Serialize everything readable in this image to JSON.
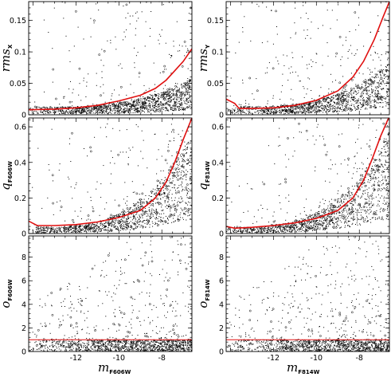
{
  "figure": {
    "x_ticks": [
      "-12",
      "-10",
      "-8"
    ],
    "panels_x_label": {
      "left": {
        "main": "m",
        "sub": "F606W"
      },
      "right": {
        "main": "m",
        "sub": "F814W"
      }
    }
  },
  "chart_data": [
    {
      "type": "scatter",
      "panel": "rms-x",
      "ylabel": {
        "main": "rms",
        "sub": "X"
      },
      "xlim": [
        -14.2,
        -6.6
      ],
      "ylim": [
        0,
        0.18
      ],
      "xticks": [
        -12,
        -10,
        -8
      ],
      "yticks": [
        0,
        0.05,
        0.1,
        0.15
      ],
      "ytick_labels": [
        "0",
        "0.05",
        "0.1",
        "0.15"
      ],
      "threshold_curve": {
        "x": [
          -14.2,
          -13,
          -12,
          -11,
          -10,
          -9,
          -8.3,
          -7.8,
          -7.4,
          -7.0,
          -6.6
        ],
        "y": [
          0.008,
          0.009,
          0.011,
          0.015,
          0.022,
          0.031,
          0.042,
          0.055,
          0.07,
          0.085,
          0.105
        ]
      },
      "scatter_envelope": {
        "base": 0.01,
        "growth": 0.035
      }
    },
    {
      "type": "scatter",
      "panel": "rms-y",
      "ylabel": {
        "main": "rms",
        "sub": "Y"
      },
      "xlim": [
        -14.2,
        -6.6
      ],
      "ylim": [
        0,
        0.18
      ],
      "xticks": [
        -12,
        -10,
        -8
      ],
      "yticks": [
        0,
        0.05,
        0.1,
        0.15
      ],
      "ytick_labels": [
        "0",
        "0.05",
        "0.1",
        "0.15"
      ],
      "threshold_curve": {
        "x": [
          -14.2,
          -13.8,
          -13.6,
          -13,
          -12,
          -11,
          -10,
          -9,
          -8.3,
          -7.8,
          -7.3,
          -6.9,
          -6.6
        ],
        "y": [
          0.025,
          0.018,
          0.01,
          0.01,
          0.011,
          0.015,
          0.023,
          0.038,
          0.06,
          0.085,
          0.12,
          0.155,
          0.18
        ]
      },
      "scatter_envelope": {
        "base": 0.01,
        "growth": 0.055
      }
    },
    {
      "type": "scatter",
      "panel": "q-f606w",
      "ylabel": {
        "main": "q",
        "sub": "F606W"
      },
      "xlim": [
        -14.2,
        -6.6
      ],
      "ylim": [
        0,
        0.65
      ],
      "xticks": [
        -12,
        -10,
        -8
      ],
      "yticks": [
        0,
        0.2,
        0.4,
        0.6
      ],
      "ytick_labels": [
        "0",
        "0.2",
        "0.4",
        "0.6"
      ],
      "threshold_curve": {
        "x": [
          -14.2,
          -13.8,
          -13,
          -12,
          -11,
          -10,
          -9,
          -8.3,
          -7.8,
          -7.4,
          -7.0,
          -6.6
        ],
        "y": [
          0.07,
          0.045,
          0.045,
          0.05,
          0.065,
          0.09,
          0.13,
          0.2,
          0.29,
          0.4,
          0.53,
          0.65
        ]
      },
      "scatter_envelope": {
        "base": 0.03,
        "growth": 0.4
      }
    },
    {
      "type": "scatter",
      "panel": "q-f814w",
      "ylabel": {
        "main": "q",
        "sub": "F814W"
      },
      "xlim": [
        -14.2,
        -6.6
      ],
      "ylim": [
        0,
        0.65
      ],
      "xticks": [
        -12,
        -10,
        -8
      ],
      "yticks": [
        0,
        0.2,
        0.4,
        0.6
      ],
      "ytick_labels": [
        "0",
        "0.2",
        "0.4",
        "0.6"
      ],
      "threshold_curve": {
        "x": [
          -14.2,
          -13.8,
          -13,
          -12,
          -11,
          -10,
          -9,
          -8.3,
          -7.8,
          -7.4,
          -7.0,
          -6.6
        ],
        "y": [
          0.04,
          0.03,
          0.035,
          0.045,
          0.06,
          0.085,
          0.13,
          0.2,
          0.3,
          0.42,
          0.55,
          0.66
        ]
      },
      "scatter_envelope": {
        "base": 0.03,
        "growth": 0.42
      }
    },
    {
      "type": "scatter",
      "panel": "o-f606w",
      "ylabel": {
        "main": "o",
        "sub": "F606W"
      },
      "xlim": [
        -14.2,
        -6.6
      ],
      "ylim": [
        0,
        9.8
      ],
      "xticks": [
        -12,
        -10,
        -8
      ],
      "yticks": [
        0,
        2,
        4,
        6,
        8
      ],
      "ytick_labels": [
        "0",
        "2",
        "4",
        "6",
        "8"
      ],
      "threshold_line": 1.0
    },
    {
      "type": "scatter",
      "panel": "o-f814w",
      "ylabel": {
        "main": "o",
        "sub": "F814W"
      },
      "xlim": [
        -14.2,
        -6.6
      ],
      "ylim": [
        0,
        9.8
      ],
      "xticks": [
        -12,
        -10,
        -8
      ],
      "yticks": [
        0,
        2,
        4,
        6,
        8
      ],
      "ytick_labels": [
        "0",
        "2",
        "4",
        "6",
        "8"
      ],
      "threshold_line": 1.0
    }
  ]
}
